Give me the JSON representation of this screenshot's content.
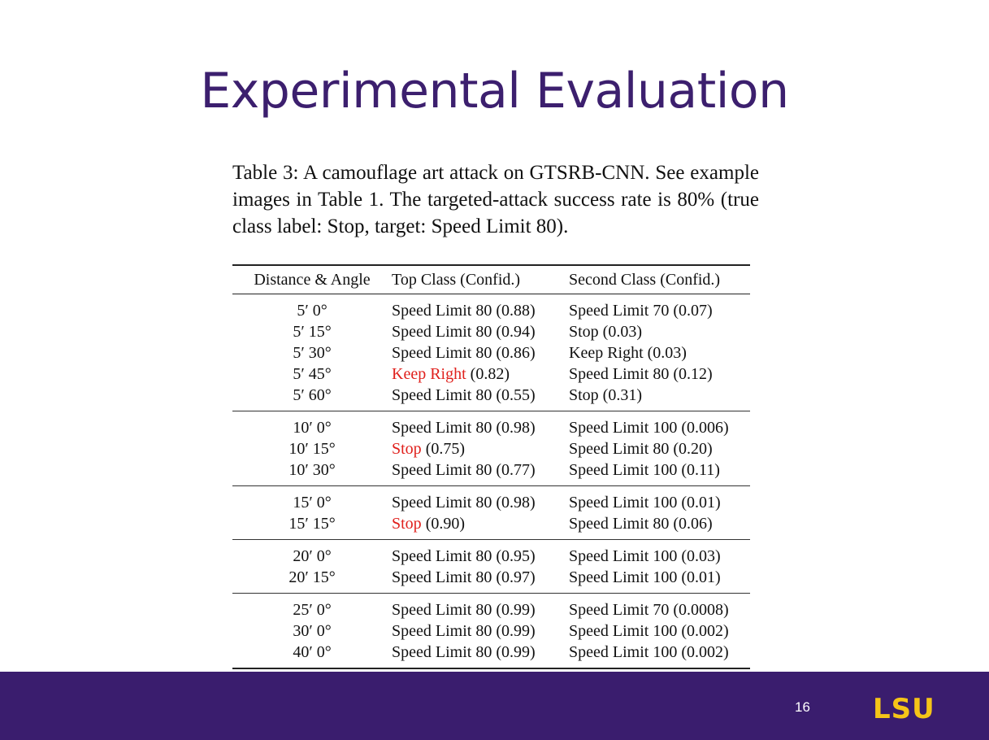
{
  "slide": {
    "title": "Experimental Evaluation",
    "page_number": "16",
    "logo_text": "LSU"
  },
  "caption": "Table 3: A camouflage art attack on GTSRB-CNN. See example images in Table 1. The targeted-attack success rate is 80% (true class label: Stop, target: Speed Limit 80).",
  "table": {
    "headers": [
      "Distance & Angle",
      "Top Class (Confid.)",
      "Second Class (Confid.)"
    ],
    "groups": [
      [
        {
          "dist": "5′ 0°",
          "top_label": "Speed Limit 80",
          "top_conf": "(0.88)",
          "top_miss": false,
          "second": "Speed Limit 70 (0.07)"
        },
        {
          "dist": "5′ 15°",
          "top_label": "Speed Limit 80",
          "top_conf": "(0.94)",
          "top_miss": false,
          "second": "Stop (0.03)"
        },
        {
          "dist": "5′ 30°",
          "top_label": "Speed Limit 80",
          "top_conf": "(0.86)",
          "top_miss": false,
          "second": "Keep Right (0.03)"
        },
        {
          "dist": "5′ 45°",
          "top_label": "Keep Right",
          "top_conf": "(0.82)",
          "top_miss": true,
          "second": "Speed Limit 80 (0.12)"
        },
        {
          "dist": "5′ 60°",
          "top_label": "Speed Limit 80",
          "top_conf": "(0.55)",
          "top_miss": false,
          "second": "Stop (0.31)"
        }
      ],
      [
        {
          "dist": "10′ 0°",
          "top_label": "Speed Limit 80",
          "top_conf": "(0.98)",
          "top_miss": false,
          "second": "Speed Limit 100 (0.006)"
        },
        {
          "dist": "10′ 15°",
          "top_label": "Stop",
          "top_conf": "(0.75)",
          "top_miss": true,
          "second": "Speed Limit 80 (0.20)"
        },
        {
          "dist": "10′ 30°",
          "top_label": "Speed Limit 80",
          "top_conf": "(0.77)",
          "top_miss": false,
          "second": "Speed Limit 100 (0.11)"
        }
      ],
      [
        {
          "dist": "15′ 0°",
          "top_label": "Speed Limit 80",
          "top_conf": "(0.98)",
          "top_miss": false,
          "second": "Speed Limit 100 (0.01)"
        },
        {
          "dist": "15′ 15°",
          "top_label": "Stop",
          "top_conf": "(0.90)",
          "top_miss": true,
          "second": "Speed Limit 80 (0.06)"
        }
      ],
      [
        {
          "dist": "20′ 0°",
          "top_label": "Speed Limit 80",
          "top_conf": "(0.95)",
          "top_miss": false,
          "second": "Speed Limit 100 (0.03)"
        },
        {
          "dist": "20′ 15°",
          "top_label": "Speed Limit 80",
          "top_conf": "(0.97)",
          "top_miss": false,
          "second": "Speed Limit 100 (0.01)"
        }
      ],
      [
        {
          "dist": "25′ 0°",
          "top_label": "Speed Limit 80",
          "top_conf": "(0.99)",
          "top_miss": false,
          "second": "Speed Limit 70 (0.0008)"
        },
        {
          "dist": "30′ 0°",
          "top_label": "Speed Limit 80",
          "top_conf": "(0.99)",
          "top_miss": false,
          "second": "Speed Limit 100 (0.002)"
        },
        {
          "dist": "40′ 0°",
          "top_label": "Speed Limit 80",
          "top_conf": "(0.99)",
          "top_miss": false,
          "second": "Speed Limit 100 (0.002)"
        }
      ]
    ],
    "miss_color": "#e0201c"
  },
  "colors": {
    "title": "#3c1f6e",
    "footer_bar": "#3a1d6e",
    "logo": "#f5c518"
  }
}
